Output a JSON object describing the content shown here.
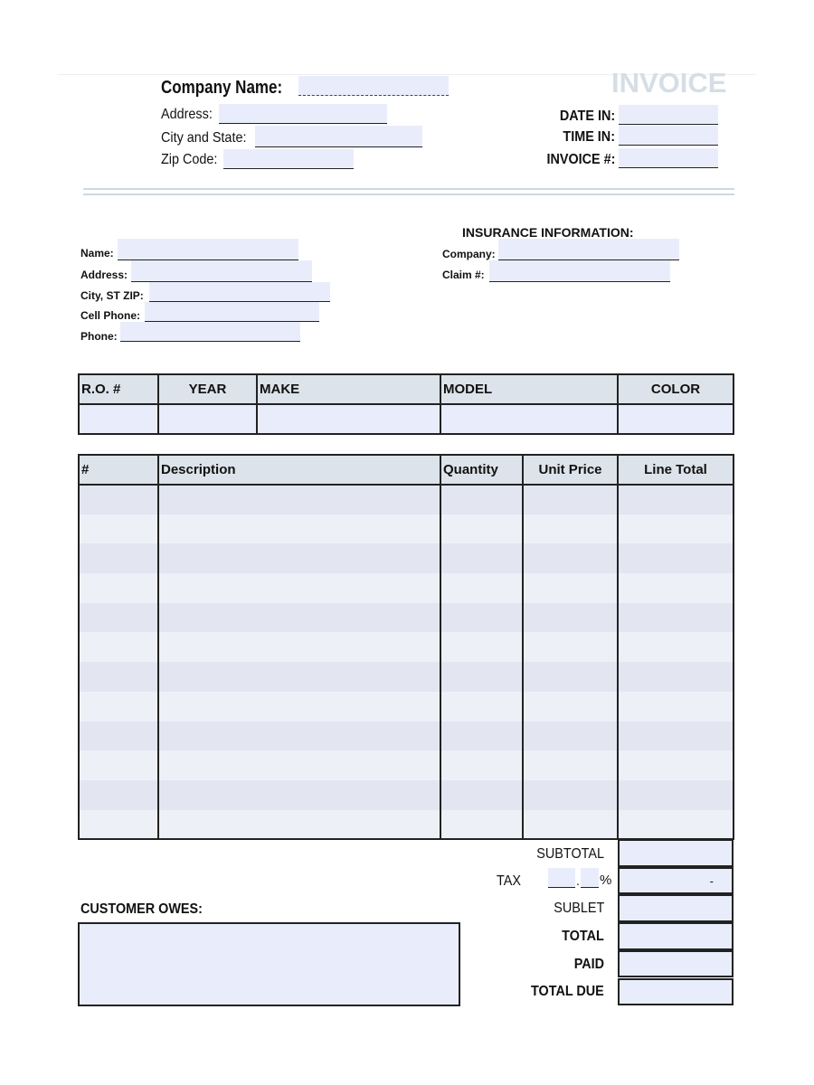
{
  "header": {
    "title": "INVOICE",
    "company_name_label": "Company Name:",
    "address_label": "Address:",
    "city_state_label": "City and State:",
    "zip_label": "Zip Code:",
    "date_in_label": "DATE IN:",
    "time_in_label": "TIME IN:",
    "invoice_no_label": "INVOICE #:"
  },
  "customer": {
    "name_label": "Name:",
    "address_label": "Address:",
    "city_label": "City, ST ZIP:",
    "cell_label": "Cell Phone:",
    "phone_label": "Phone:"
  },
  "insurance": {
    "title": "INSURANCE INFORMATION:",
    "company_label": "Company:",
    "claim_label": "Claim #:"
  },
  "vehicle_table": {
    "columns": [
      "R.O. #",
      "YEAR",
      "MAKE",
      "MODEL",
      "COLOR"
    ]
  },
  "items_table": {
    "columns": [
      "#",
      "Description",
      "Quantity",
      "Unit Price",
      "Line Total"
    ]
  },
  "totals": {
    "subtotal": "SUBTOTAL",
    "tax": "TAX",
    "tax_percent": "%",
    "tax_value": "-",
    "sublet": "SUBLET",
    "total": "TOTAL",
    "paid": "PAID",
    "total_due": "TOTAL DUE"
  },
  "customer_owes": {
    "label": "CUSTOMER OWES:"
  },
  "colors": {
    "field_fill": "#e9edfb",
    "header_fill": "#dde3ea",
    "title": "#d5dee6"
  }
}
